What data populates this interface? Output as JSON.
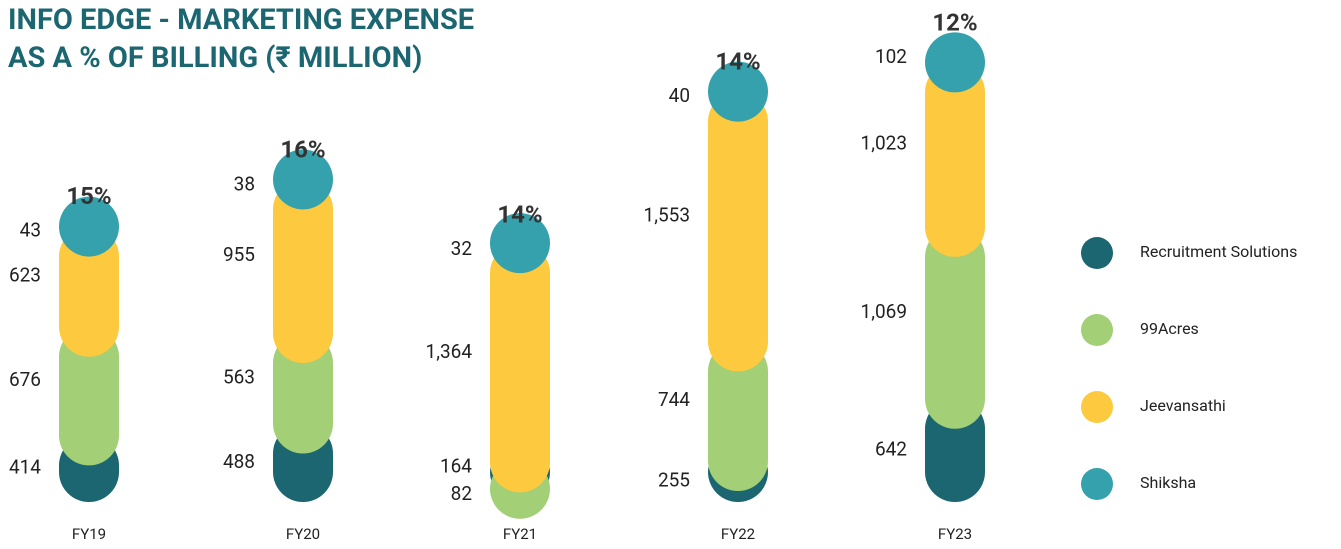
{
  "chart_data": {
    "type": "stacked_bar",
    "title": [
      "INFO EDGE - MARKETING EXPENSE",
      "AS A % OF BILLING (₹ MILLION)"
    ],
    "categories": [
      "FY19",
      "FY20",
      "FY21",
      "FY22",
      "FY23"
    ],
    "series": [
      {
        "name": "Recruitment Solutions",
        "color": "#1b6670",
        "values": [
          414,
          488,
          82,
          255,
          642
        ]
      },
      {
        "name": "99Acres",
        "color": "#a3cf77",
        "values": [
          676,
          563,
          164,
          744,
          1069
        ],
        "value_labels": [
          "676",
          "563",
          "164",
          "744",
          "1,069"
        ]
      },
      {
        "name": "Jeevansathi",
        "color": "#fdc93e",
        "values": [
          623,
          955,
          1364,
          1553,
          1023
        ],
        "value_labels": [
          "623",
          "955",
          "1,364",
          "1,553",
          "1,023"
        ]
      },
      {
        "name": "Shiksha",
        "color": "#35a1ad",
        "values": [
          43,
          38,
          32,
          40,
          102
        ]
      }
    ],
    "share_of_billing": {
      "values": [
        15,
        16,
        14,
        14,
        12
      ],
      "value_labels": [
        "15%",
        "16%",
        "14%",
        "14%",
        "12%"
      ]
    }
  }
}
